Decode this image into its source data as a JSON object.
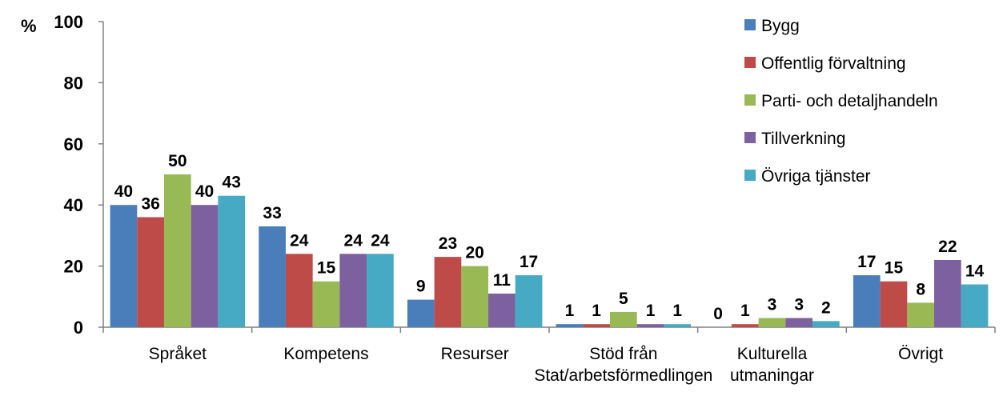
{
  "chart_data": {
    "type": "bar",
    "ylabel": "%",
    "ylim": [
      0,
      100
    ],
    "yticks": [
      0,
      20,
      40,
      60,
      80,
      100
    ],
    "grid": false,
    "legend_position": "top-right",
    "categories": [
      [
        "Språket"
      ],
      [
        "Kompetens"
      ],
      [
        "Resurser"
      ],
      [
        "Stöd från",
        "Stat/arbetsförmedlingen"
      ],
      [
        "Kulturella",
        "utmaningar"
      ],
      [
        "Övrigt"
      ]
    ],
    "series": [
      {
        "name": "Bygg",
        "color": "#4a7ebb",
        "values": [
          40,
          33,
          9,
          1,
          0,
          17
        ]
      },
      {
        "name": "Offentlig förvaltning",
        "color": "#be4b48",
        "values": [
          36,
          24,
          23,
          1,
          1,
          15
        ]
      },
      {
        "name": "Parti- och detaljhandeln",
        "color": "#98b954",
        "values": [
          50,
          15,
          20,
          5,
          3,
          8
        ]
      },
      {
        "name": "Tillverkning",
        "color": "#7d60a0",
        "values": [
          40,
          24,
          11,
          1,
          3,
          22
        ]
      },
      {
        "name": "Övriga tjänster",
        "color": "#46aac5",
        "values": [
          43,
          24,
          17,
          1,
          2,
          14
        ]
      }
    ]
  }
}
